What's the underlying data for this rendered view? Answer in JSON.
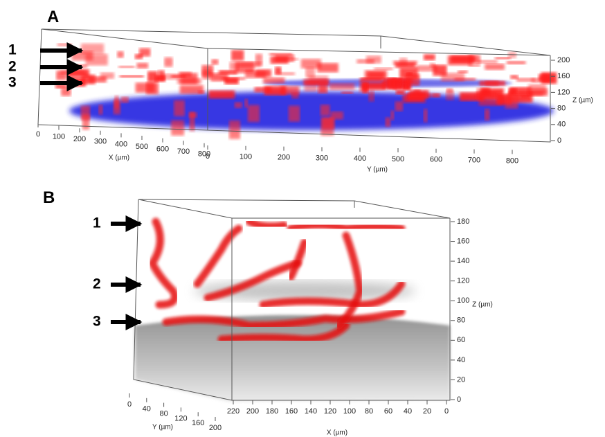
{
  "panels": [
    {
      "label": "A",
      "arrows": [
        "1",
        "2",
        "3"
      ],
      "x_axis": {
        "label": "X (µm)",
        "ticks": [
          0,
          100,
          200,
          300,
          400,
          500,
          600,
          700,
          800
        ]
      },
      "y_axis": {
        "label": "Y (µm)",
        "ticks": [
          0,
          100,
          200,
          300,
          400,
          500,
          600,
          700,
          800
        ]
      },
      "z_axis": {
        "label": "Z (µm)",
        "ticks": [
          200,
          160,
          120,
          80,
          40,
          0
        ]
      }
    },
    {
      "label": "B",
      "arrows": [
        "1",
        "2",
        "3"
      ],
      "x_axis": {
        "label": "X (µm)",
        "ticks": [
          220,
          200,
          180,
          160,
          140,
          120,
          100,
          80,
          60,
          40,
          20,
          0
        ]
      },
      "y_axis": {
        "label": "Y (µm)",
        "ticks": [
          0,
          40,
          80,
          120,
          160,
          200
        ]
      },
      "z_axis": {
        "label": "Z (µm)",
        "ticks": [
          180,
          160,
          140,
          120,
          100,
          80,
          60,
          40,
          20,
          0
        ]
      }
    }
  ]
}
